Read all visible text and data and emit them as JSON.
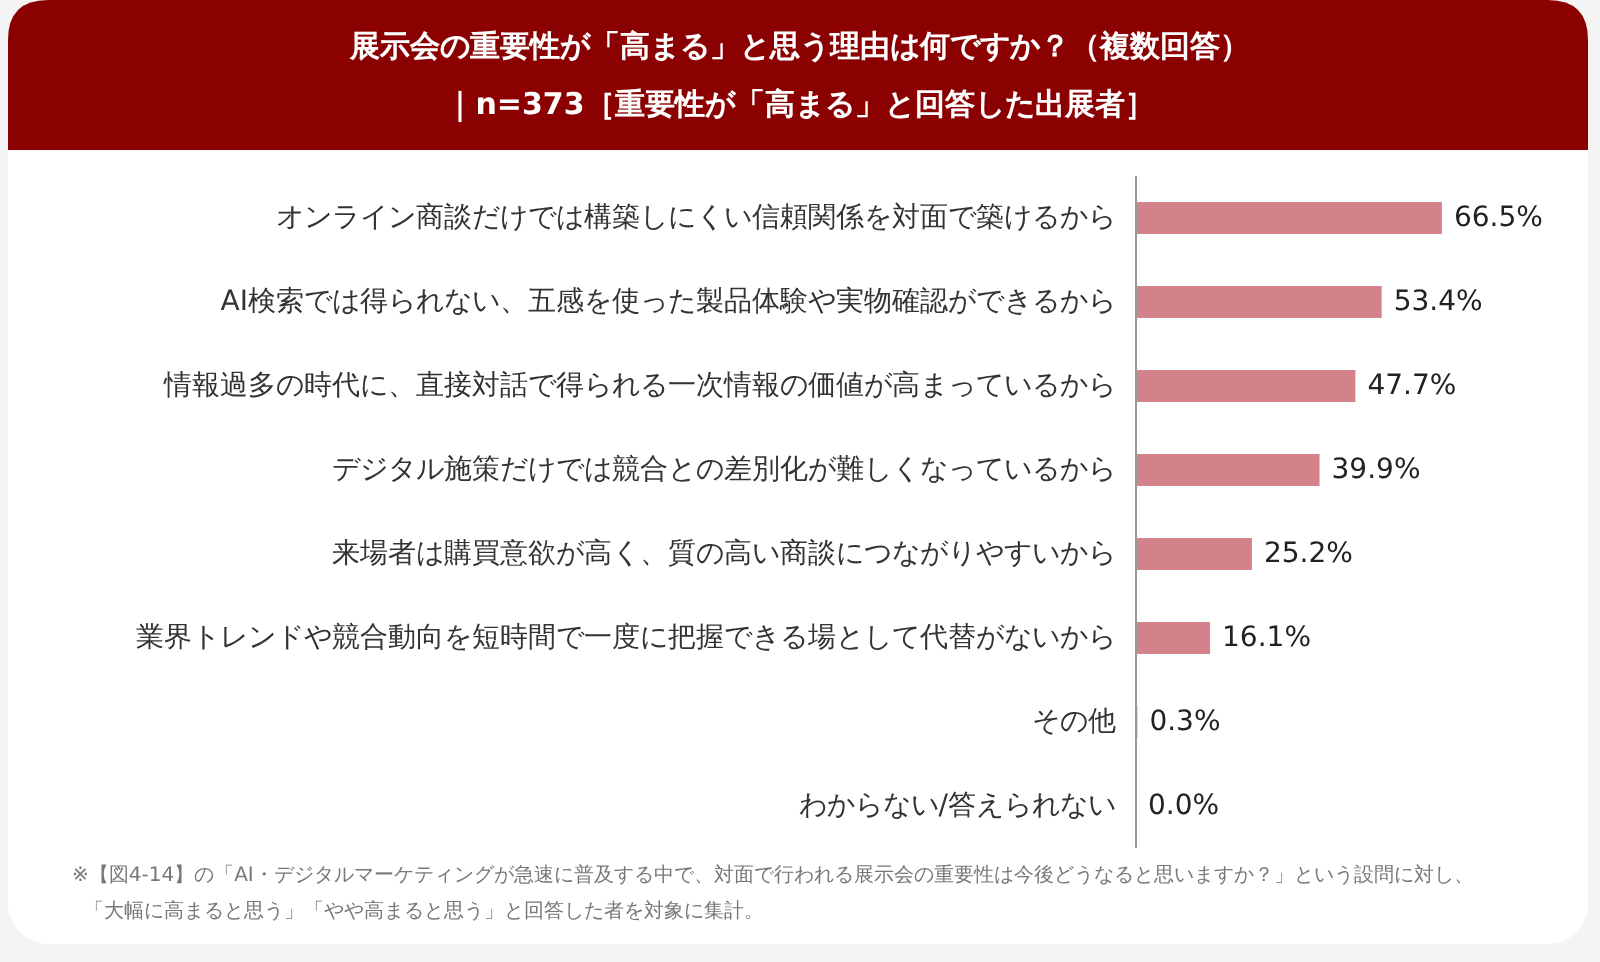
{
  "chart_data": {
    "type": "bar",
    "orientation": "horizontal",
    "title": "展示会の重要性が「高まる」と思う理由は何ですか？（複数回答）",
    "subtitle": "｜n=373［重要性が「高まる」と回答した出展者］",
    "categories": [
      "オンライン商談だけでは構築しにくい信頼関係を対面で築けるから",
      "AI検索では得られない、五感を使った製品体験や実物確認ができるから",
      "情報過多の時代に、直接対話で得られる一次情報の価値が高まっているから",
      "デジタル施策だけでは競合との差別化が難しくなっているから",
      "来場者は購買意欲が高く、質の高い商談につながりやすいから",
      "業界トレンドや競合動向を短時間で一度に把握できる場として代替がないから",
      "その他",
      "わからない/答えられない"
    ],
    "values": [
      66.5,
      53.4,
      47.7,
      39.9,
      25.2,
      16.1,
      0.3,
      0.0
    ],
    "value_labels": [
      "66.5%",
      "53.4%",
      "47.7%",
      "39.9%",
      "25.2%",
      "16.1%",
      "0.3%",
      "0.0%"
    ],
    "color": "#d4828a",
    "annotations": [
      "※【図4-14】の「AI・デジタルマーケティングが急速に普及する中で、対面で行われる展示会の重要性は今後どうなると思いますか？」という設問に対し、",
      "「大幅に高まると思う」「やや高まると思う」と回答した者を対象に集計。"
    ]
  }
}
